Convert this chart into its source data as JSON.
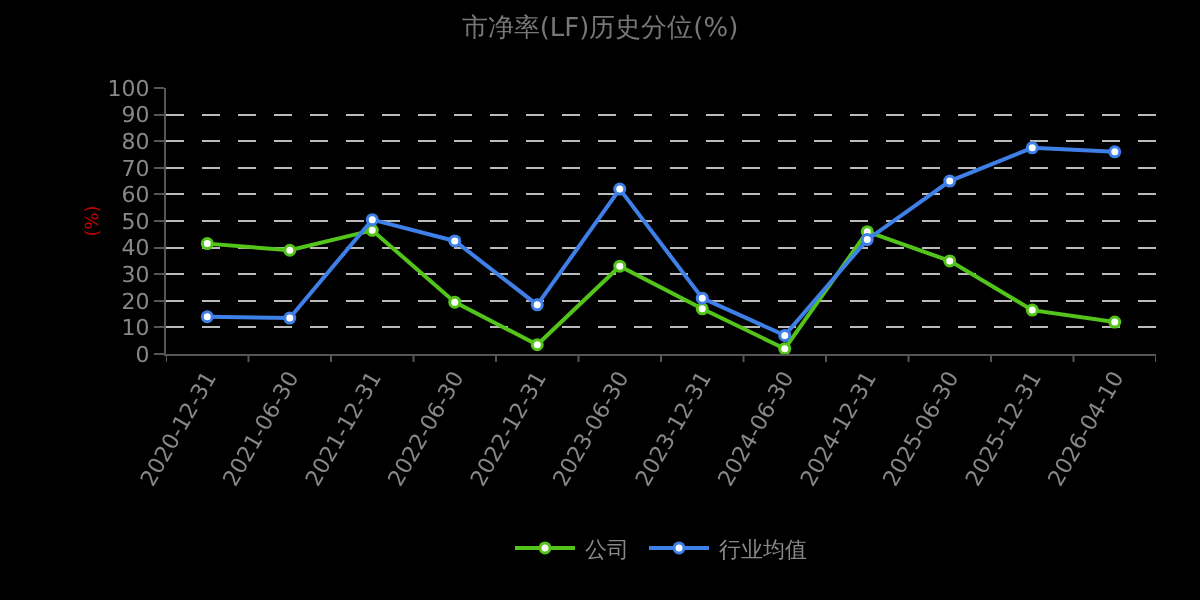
{
  "chart_data": {
    "type": "line",
    "title": "市净率(LF)历史分位(%)",
    "ylabel": "(%)",
    "categories": [
      "2020-12-31",
      "2021-06-30",
      "2021-12-31",
      "2022-06-30",
      "2022-12-31",
      "2023-06-30",
      "2023-12-31",
      "2024-06-30",
      "2024-12-31",
      "2025-06-30",
      "2025-12-31",
      "2026-04-10"
    ],
    "series": [
      {
        "name": "公司",
        "color": "#52c41a",
        "values": [
          41.5,
          39,
          46.5,
          19.5,
          3.5,
          33,
          17,
          2,
          46,
          35,
          16.5,
          12
        ]
      },
      {
        "name": "行业均值",
        "color": "#3f7fe8",
        "values": [
          14,
          13.5,
          50.5,
          42.5,
          18.5,
          62,
          21,
          7,
          43,
          65,
          77.5,
          76
        ]
      }
    ],
    "ylim": [
      0,
      100
    ],
    "yticks": [
      0,
      10,
      20,
      30,
      40,
      50,
      60,
      70,
      80,
      90,
      100
    ],
    "grid": "y",
    "legend": "bottom",
    "marker": "circle",
    "line_style": "solid"
  }
}
